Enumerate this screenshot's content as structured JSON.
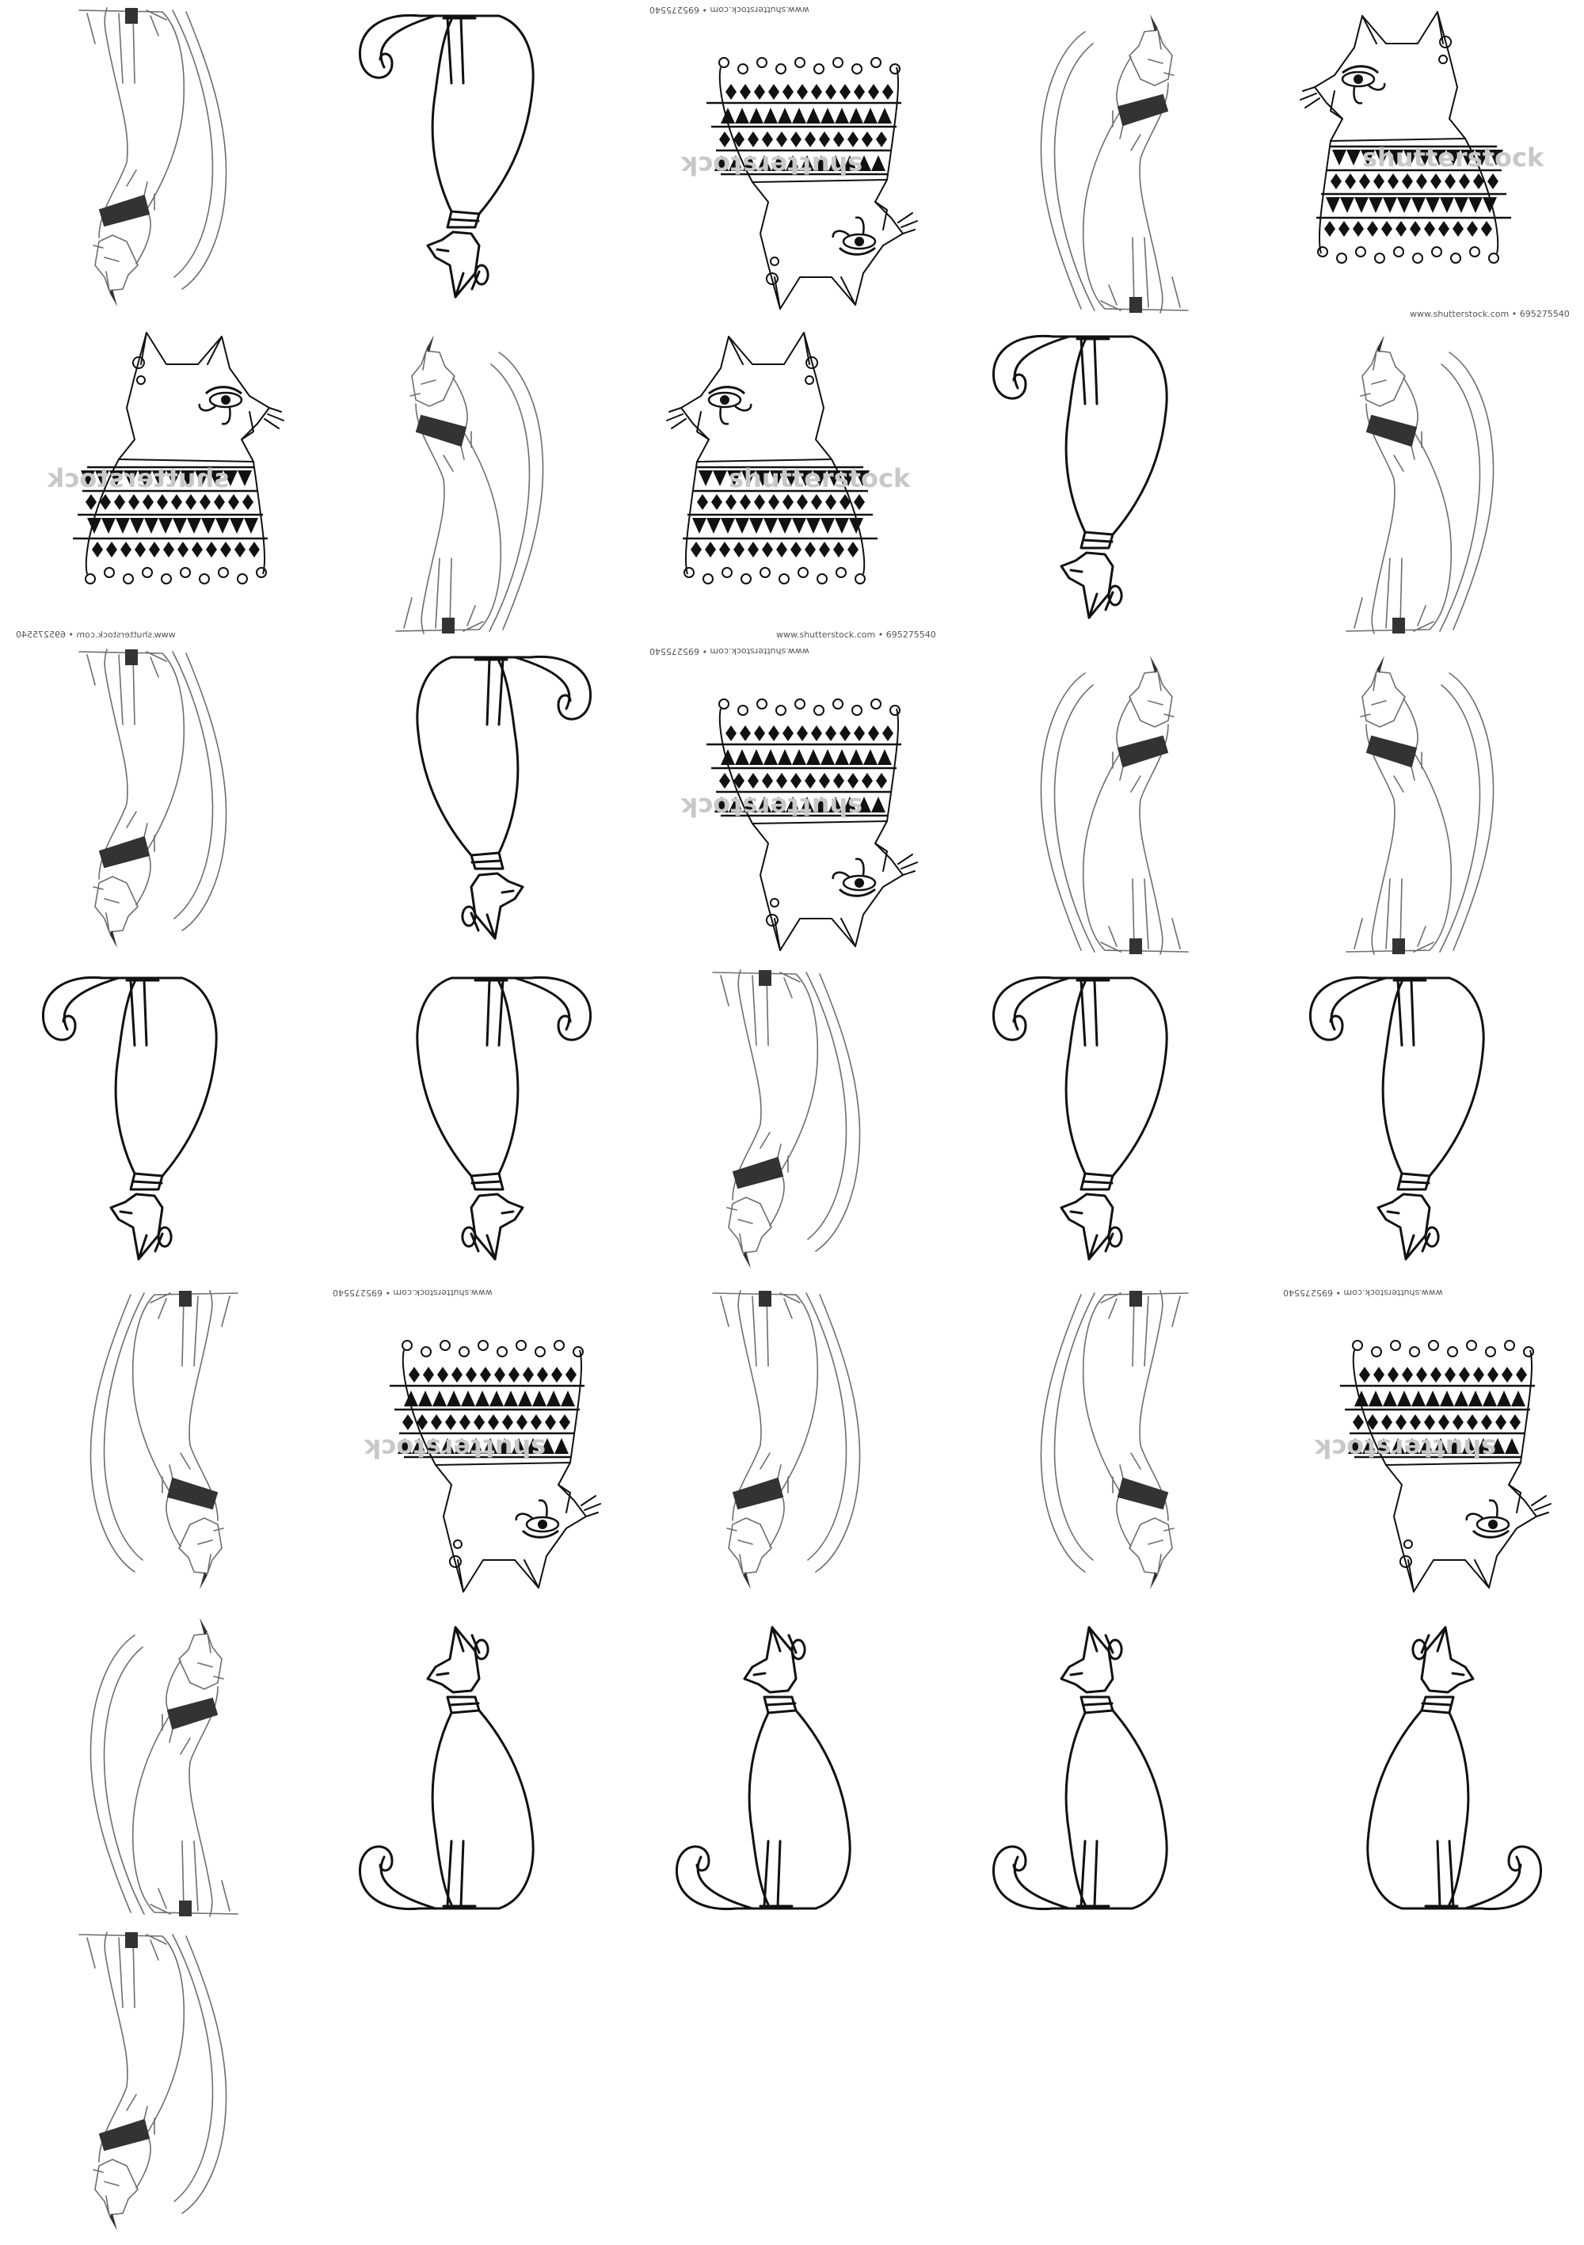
{
  "sheet": {
    "watermark_text": "shutterstock",
    "caption_text": "www.shutterstock.com • 695275540",
    "ink_color": "#111111",
    "sketch_color": "#6e6e6e",
    "collar_color": "#333333"
  },
  "tiles": [
    {
      "kind": "sketch",
      "orient": "fliphv"
    },
    {
      "kind": "outline",
      "orient": "flipv"
    },
    {
      "kind": "bust",
      "orient": "fliphv"
    },
    {
      "kind": "sketch",
      "orient": "normal"
    },
    {
      "kind": "bust",
      "orient": "normal"
    },
    {
      "kind": "bust",
      "orient": "fliph"
    },
    {
      "kind": "sketch",
      "orient": "fliph"
    },
    {
      "kind": "bust",
      "orient": "normal"
    },
    {
      "kind": "outline",
      "orient": "flipv"
    },
    {
      "kind": "sketch",
      "orient": "fliph"
    },
    {
      "kind": "sketch",
      "orient": "fliphv"
    },
    {
      "kind": "outline",
      "orient": "fliphv"
    },
    {
      "kind": "bust",
      "orient": "fliphv"
    },
    {
      "kind": "sketch",
      "orient": "normal"
    },
    {
      "kind": "sketch",
      "orient": "fliph"
    },
    {
      "kind": "outline",
      "orient": "flipv"
    },
    {
      "kind": "outline",
      "orient": "fliphv"
    },
    {
      "kind": "sketch",
      "orient": "fliphv"
    },
    {
      "kind": "outline",
      "orient": "flipv"
    },
    {
      "kind": "outline",
      "orient": "flipv"
    },
    {
      "kind": "sketch",
      "orient": "flipv"
    },
    {
      "kind": "bust",
      "orient": "fliphv"
    },
    {
      "kind": "sketch",
      "orient": "fliphv"
    },
    {
      "kind": "sketch",
      "orient": "flipv"
    },
    {
      "kind": "bust",
      "orient": "fliphv"
    },
    {
      "kind": "sketch",
      "orient": "normal"
    },
    {
      "kind": "outline",
      "orient": "normal"
    },
    {
      "kind": "outline",
      "orient": "normal"
    },
    {
      "kind": "outline",
      "orient": "normal"
    },
    {
      "kind": "outline",
      "orient": "fliph"
    },
    {
      "kind": "sketch",
      "orient": "fliphv"
    }
  ]
}
